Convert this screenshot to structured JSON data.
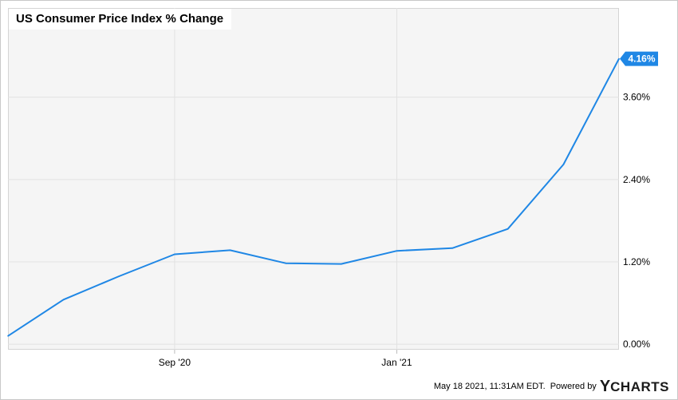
{
  "chart_data": {
    "type": "line",
    "title": "US Consumer Price Index % Change",
    "x": [
      "2020-05",
      "2020-06",
      "2020-07",
      "2020-08",
      "2020-09",
      "2020-10",
      "2020-11",
      "2020-12",
      "2021-01",
      "2021-02",
      "2021-03",
      "2021-04"
    ],
    "x_tick_labels": [
      {
        "x": "2020-08",
        "label": "Sep '20"
      },
      {
        "x": "2020-12",
        "label": "Jan '21"
      }
    ],
    "series": [
      {
        "name": "",
        "color": "#1f87e5",
        "values": [
          0.12,
          0.65,
          0.99,
          1.31,
          1.37,
          1.18,
          1.17,
          1.36,
          1.4,
          1.68,
          2.62,
          4.16
        ]
      }
    ],
    "ylim": [
      -0.08,
      4.9
    ],
    "y_ticks": [
      0.0,
      1.2,
      2.4,
      3.6
    ],
    "y_tick_labels": [
      "0.00%",
      "1.20%",
      "2.40%",
      "3.60%"
    ],
    "last_value_label": "4.16%",
    "grid": true,
    "y_axis_side": "right",
    "xlabel": "",
    "ylabel": ""
  },
  "footer": {
    "timestamp": "May 18 2021, 11:31AM EDT.",
    "powered_by": "Powered by",
    "brand_initial": "Y",
    "brand_rest": "CHARTS"
  }
}
